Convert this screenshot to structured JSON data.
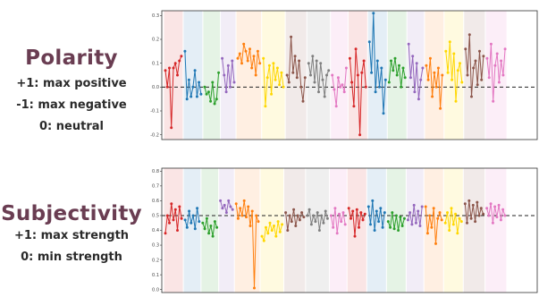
{
  "panels": {
    "polarity": {
      "title": "Polarity",
      "legend": [
        "+1: max positive",
        "-1: max negative",
        "0: neutral"
      ]
    },
    "subjectivity": {
      "title": "Subjectivity",
      "legend": [
        "+1: max strength",
        "0: min strength"
      ]
    }
  },
  "colors": [
    "#d62728",
    "#1f77b4",
    "#2ca02c",
    "#9467bd",
    "#ff7f0e",
    "#ffd700",
    "#8c564b",
    "#7f7f7f",
    "#e377c2",
    "#d62728",
    "#1f77b4",
    "#2ca02c",
    "#9467bd",
    "#ff7f0e",
    "#ffd700",
    "#8c564b",
    "#e377c2"
  ],
  "chart_data": [
    {
      "type": "line",
      "title": "",
      "xlabel": "",
      "ylabel": "",
      "ylim": [
        -0.22,
        0.32
      ],
      "y_ticks": [
        -0.2,
        -0.1,
        0.0,
        0.1,
        0.2,
        0.3
      ],
      "y_tick_labels": [
        "-0.2",
        "-0.1",
        "0.0",
        "0.1",
        "0.2",
        "0.3"
      ],
      "reference_line": 0.0,
      "grid": false,
      "series": [
        {
          "values": [
            0.07,
            0.0,
            0.08,
            -0.17,
            0.08,
            0.1,
            0.05,
            0.11,
            0.13
          ]
        },
        {
          "values": [
            0.15,
            -0.05,
            0.03,
            -0.04,
            0.0,
            0.07,
            -0.04,
            0.02,
            -0.03
          ]
        },
        {
          "values": [
            0.0,
            -0.03,
            -0.02,
            -0.06,
            0.02,
            -0.07,
            -0.05,
            0.06
          ]
        },
        {
          "values": [
            0.12,
            0.05,
            -0.02,
            0.09,
            0.0,
            0.11,
            0.02
          ]
        },
        {
          "values": [
            0.12,
            0.14,
            0.1,
            0.18,
            0.15,
            0.11,
            0.16,
            0.08,
            0.13,
            0.05,
            0.15,
            0.1
          ]
        },
        {
          "values": [
            0.12,
            -0.08,
            0.04,
            0.09,
            -0.03,
            0.1,
            0.03,
            0.08,
            0.01,
            0.06,
            0.0
          ]
        },
        {
          "values": [
            0.05,
            0.02,
            0.21,
            0.06,
            0.13,
            0.04,
            0.11,
            0.0,
            -0.06,
            0.04
          ]
        },
        {
          "values": [
            0.1,
            0.05,
            0.13,
            0.02,
            0.11,
            -0.02,
            0.1,
            0.03,
            -0.04,
            0.05,
            0.07
          ]
        },
        {
          "values": [
            0.05,
            -0.01,
            -0.08,
            0.04,
            0.0,
            0.01,
            -0.02,
            0.08
          ]
        },
        {
          "values": [
            0.12,
            0.02,
            -0.08,
            0.16,
            0.05,
            -0.2,
            0.06,
            0.11,
            0.0
          ]
        },
        {
          "values": [
            0.19,
            0.06,
            0.31,
            -0.02,
            0.11,
            0.0,
            0.08,
            -0.11,
            0.03
          ]
        },
        {
          "values": [
            0.02,
            0.11,
            0.07,
            0.12,
            0.05,
            0.09,
            0.0,
            0.08,
            0.04
          ]
        },
        {
          "values": [
            0.18,
            0.04,
            0.13,
            -0.02,
            0.1,
            -0.05,
            0.03,
            0.08
          ]
        },
        {
          "values": [
            0.09,
            0.03,
            0.12,
            -0.04,
            0.06,
            0.0,
            0.08,
            -0.09,
            0.05
          ]
        },
        {
          "values": [
            0.15,
            0.06,
            0.19,
            0.03,
            0.14,
            -0.06,
            0.07,
            0.1,
            0.02
          ]
        },
        {
          "values": [
            0.16,
            0.05,
            0.22,
            -0.04,
            0.08,
            0.11,
            0.01,
            0.15,
            0.03,
            0.13
          ]
        },
        {
          "values": [
            0.12,
            0.04,
            0.18,
            -0.06,
            0.09,
            0.14,
            0.02,
            0.11,
            0.05,
            0.16
          ]
        }
      ]
    },
    {
      "type": "line",
      "title": "",
      "xlabel": "",
      "ylabel": "",
      "ylim": [
        -0.02,
        0.82
      ],
      "y_ticks": [
        0.0,
        0.1,
        0.2,
        0.3,
        0.4,
        0.5,
        0.6,
        0.7,
        0.8
      ],
      "y_tick_labels": [
        "0.0",
        "0.1",
        "0.2",
        "0.3",
        "0.4",
        "0.5",
        "0.6",
        "0.7",
        "0.8"
      ],
      "reference_line": 0.5,
      "grid": false,
      "series": [
        {
          "values": [
            0.38,
            0.5,
            0.45,
            0.58,
            0.47,
            0.54,
            0.4,
            0.56,
            0.48
          ]
        },
        {
          "values": [
            0.47,
            0.42,
            0.53,
            0.45,
            0.5,
            0.41,
            0.55,
            0.46
          ]
        },
        {
          "values": [
            0.45,
            0.41,
            0.48,
            0.38,
            0.43,
            0.36,
            0.46,
            0.42
          ]
        },
        {
          "values": [
            0.6,
            0.55,
            0.57,
            0.52,
            0.6,
            0.56,
            0.54
          ]
        },
        {
          "values": [
            0.58,
            0.48,
            0.55,
            0.5,
            0.6,
            0.49,
            0.56,
            0.43,
            0.53,
            0.01,
            0.5,
            0.46
          ]
        },
        {
          "values": [
            0.36,
            0.33,
            0.42,
            0.38,
            0.45,
            0.4,
            0.43,
            0.36,
            0.46,
            0.39,
            0.44
          ]
        },
        {
          "values": [
            0.52,
            0.4,
            0.5,
            0.46,
            0.54,
            0.43,
            0.5,
            0.47,
            0.52,
            0.49
          ]
        },
        {
          "values": [
            0.5,
            0.54,
            0.44,
            0.5,
            0.46,
            0.52,
            0.4,
            0.5,
            0.45,
            0.53,
            0.48
          ]
        },
        {
          "values": [
            0.5,
            0.42,
            0.55,
            0.38,
            0.51,
            0.46,
            0.52,
            0.44
          ]
        },
        {
          "values": [
            0.55,
            0.48,
            0.53,
            0.36,
            0.54,
            0.42,
            0.52,
            0.47,
            0.51
          ]
        },
        {
          "values": [
            0.56,
            0.44,
            0.6,
            0.4,
            0.53,
            0.46,
            0.55,
            0.42,
            0.52
          ]
        },
        {
          "values": [
            0.46,
            0.42,
            0.52,
            0.41,
            0.5,
            0.4,
            0.49,
            0.43,
            0.48
          ]
        },
        {
          "values": [
            0.47,
            0.52,
            0.44,
            0.57,
            0.45,
            0.53,
            0.43,
            0.56
          ]
        },
        {
          "values": [
            0.56,
            0.38,
            0.5,
            0.42,
            0.55,
            0.31,
            0.48,
            0.52,
            0.47
          ]
        },
        {
          "values": [
            0.45,
            0.52,
            0.4,
            0.55,
            0.44,
            0.51,
            0.38,
            0.48,
            0.46
          ]
        },
        {
          "values": [
            0.58,
            0.45,
            0.6,
            0.48,
            0.57,
            0.46,
            0.59,
            0.5,
            0.55,
            0.51
          ]
        },
        {
          "values": [
            0.55,
            0.5,
            0.58,
            0.45,
            0.56,
            0.49,
            0.57,
            0.47,
            0.54,
            0.5
          ]
        }
      ]
    }
  ]
}
